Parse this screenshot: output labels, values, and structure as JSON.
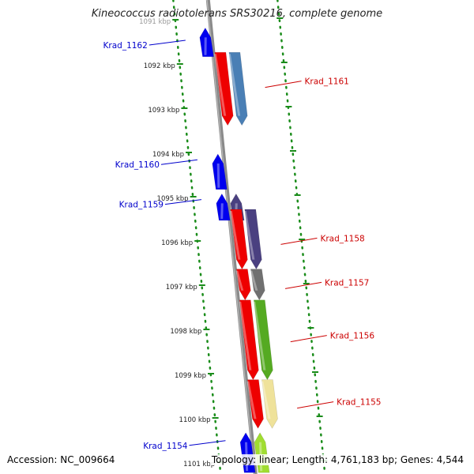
{
  "title": "Kineococcus radiotolerans SRS30216, complete genome",
  "colors": {
    "dna_strand": "#8a8a8a",
    "tick_dots": "#1a8c1a",
    "forward_label": "#cc0000",
    "reverse_label": "#0000cc"
  },
  "scale": {
    "unit": "kbp",
    "ticks": [
      {
        "label": "1091 kbp",
        "kbp": 1091
      },
      {
        "label": "1092 kbp",
        "kbp": 1092
      },
      {
        "label": "1093 kbp",
        "kbp": 1093
      },
      {
        "label": "1094 kbp",
        "kbp": 1094
      },
      {
        "label": "1095 kbp",
        "kbp": 1095
      },
      {
        "label": "1096 kbp",
        "kbp": 1096
      },
      {
        "label": "1097 kbp",
        "kbp": 1097
      },
      {
        "label": "1098 kbp",
        "kbp": 1098
      },
      {
        "label": "1099 kbp",
        "kbp": 1099
      },
      {
        "label": "1100 kbp",
        "kbp": 1100
      },
      {
        "label": "1101 kbp",
        "kbp": 1101
      }
    ]
  },
  "genes": [
    {
      "label": "Krad_1162",
      "strand": "reverse",
      "start_kbp": 1091.15,
      "end_kbp": 1091.8,
      "color": "#0000ee",
      "track": 2
    },
    {
      "label": "Krad_1161",
      "strand": "forward",
      "start_kbp": 1091.7,
      "end_kbp": 1093.35,
      "color": "#ee0000",
      "track": 1
    },
    {
      "label": "Krad_1161",
      "strand": "forward",
      "start_kbp": 1091.7,
      "end_kbp": 1093.35,
      "color": "#4a7fb5",
      "track": 2
    },
    {
      "label": "Krad_1160",
      "strand": "reverse",
      "start_kbp": 1094.0,
      "end_kbp": 1094.8,
      "color": "#0000ee",
      "track": 2
    },
    {
      "label": "Krad_1159",
      "strand": "reverse",
      "start_kbp": 1094.9,
      "end_kbp": 1095.5,
      "color": "#0000ee",
      "track": 2
    },
    {
      "label": "Krad_1159",
      "strand": "reverse",
      "start_kbp": 1094.9,
      "end_kbp": 1095.5,
      "color": "#4a4080",
      "track": 1
    },
    {
      "label": "Krad_1158",
      "strand": "forward",
      "start_kbp": 1095.25,
      "end_kbp": 1096.6,
      "color": "#ee0000",
      "track": 1
    },
    {
      "label": "Krad_1158",
      "strand": "forward",
      "start_kbp": 1095.25,
      "end_kbp": 1096.6,
      "color": "#4a4080",
      "track": 2
    },
    {
      "label": "Krad_1157",
      "strand": "forward",
      "start_kbp": 1096.6,
      "end_kbp": 1097.3,
      "color": "#ee0000",
      "track": 1
    },
    {
      "label": "Krad_1157",
      "strand": "forward",
      "start_kbp": 1096.6,
      "end_kbp": 1097.3,
      "color": "#707070",
      "track": 2
    },
    {
      "label": "Krad_1156",
      "strand": "forward",
      "start_kbp": 1097.3,
      "end_kbp": 1099.1,
      "color": "#ee0000",
      "track": 1
    },
    {
      "label": "Krad_1156",
      "strand": "forward",
      "start_kbp": 1097.3,
      "end_kbp": 1099.1,
      "color": "#55aa22",
      "track": 2
    },
    {
      "label": "Krad_1155",
      "strand": "forward",
      "start_kbp": 1099.1,
      "end_kbp": 1100.2,
      "color": "#ee0000",
      "track": 1
    },
    {
      "label": "Krad_1155",
      "strand": "forward",
      "start_kbp": 1099.1,
      "end_kbp": 1100.2,
      "color": "#efe29a",
      "track": 2
    },
    {
      "label": "Krad_1154",
      "strand": "reverse",
      "start_kbp": 1100.3,
      "end_kbp": 1101.2,
      "color": "#0000ee",
      "track": 2
    },
    {
      "label": "Krad_1154",
      "strand": "reverse",
      "start_kbp": 1100.3,
      "end_kbp": 1101.2,
      "color": "#a0dd30",
      "track": 1
    }
  ],
  "callouts": [
    {
      "text": "Krad_1162",
      "strand": "reverse",
      "kbp": 1091.5
    },
    {
      "text": "Krad_1161",
      "strand": "forward",
      "kbp": 1092.35
    },
    {
      "text": "Krad_1160",
      "strand": "reverse",
      "kbp": 1094.2
    },
    {
      "text": "Krad_1159",
      "strand": "reverse",
      "kbp": 1095.1
    },
    {
      "text": "Krad_1158",
      "strand": "forward",
      "kbp": 1095.9
    },
    {
      "text": "Krad_1157",
      "strand": "forward",
      "kbp": 1096.9
    },
    {
      "text": "Krad_1156",
      "strand": "forward",
      "kbp": 1098.1
    },
    {
      "text": "Krad_1155",
      "strand": "forward",
      "kbp": 1099.6
    },
    {
      "text": "Krad_1154",
      "strand": "reverse",
      "kbp": 1100.55
    }
  ],
  "footer": {
    "accession": "Accession: NC_009664",
    "summary": "Topology: linear; Length: 4,761,183 bp; Genes: 4,544"
  }
}
